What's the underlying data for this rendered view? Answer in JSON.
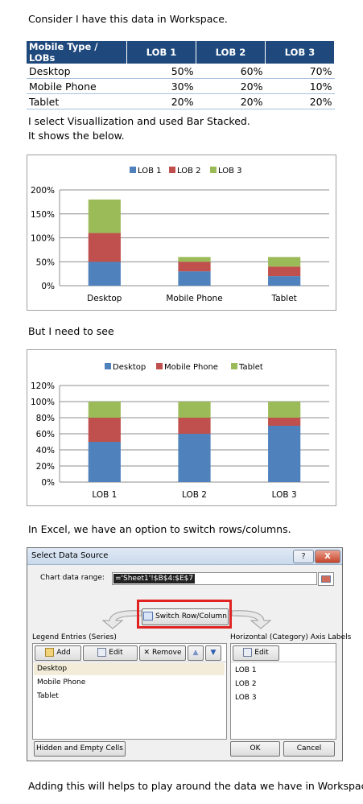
{
  "intro": "Consider I have this data in Workspace.",
  "table": {
    "headers": [
      "Mobile Type / LOBs",
      "LOB 1",
      "LOB 2",
      "LOB 3"
    ],
    "rows": [
      [
        "Desktop",
        "50%",
        "60%",
        "70%"
      ],
      [
        "Mobile Phone",
        "30%",
        "20%",
        "10%"
      ],
      [
        "Tablet",
        "20%",
        "20%",
        "20%"
      ]
    ]
  },
  "para2_line1": "I select Visuallization and used Bar Stacked.",
  "para2_line2": "It shows the below.",
  "para3": "But I need to see",
  "para4": "In Excel, we have an option to switch rows/columns.",
  "closing": "Adding this will helps to play around the data we have in Workspace.",
  "colors": {
    "blue": "#4f81bd",
    "red": "#c0504d",
    "green": "#9bbb59",
    "header": "#1f497d"
  },
  "chart_data": [
    {
      "type": "bar",
      "stacked": true,
      "categories": [
        "Desktop",
        "Mobile Phone",
        "Tablet"
      ],
      "series": [
        {
          "name": "LOB 1",
          "values": [
            50,
            30,
            20
          ]
        },
        {
          "name": "LOB 2",
          "values": [
            60,
            20,
            20
          ]
        },
        {
          "name": "LOB 3",
          "values": [
            70,
            10,
            20
          ]
        }
      ],
      "yticks": [
        "0%",
        "50%",
        "100%",
        "150%",
        "200%"
      ],
      "ylim": [
        0,
        200
      ],
      "legend": "top",
      "grid": true
    },
    {
      "type": "bar",
      "stacked": true,
      "categories": [
        "LOB 1",
        "LOB 2",
        "LOB 3"
      ],
      "series": [
        {
          "name": "Desktop",
          "values": [
            50,
            60,
            70
          ]
        },
        {
          "name": "Mobile Phone",
          "values": [
            30,
            20,
            10
          ]
        },
        {
          "name": "Tablet",
          "values": [
            20,
            20,
            20
          ]
        }
      ],
      "yticks": [
        "0%",
        "20%",
        "40%",
        "60%",
        "80%",
        "100%",
        "120%"
      ],
      "ylim": [
        0,
        120
      ],
      "legend": "top",
      "grid": true
    }
  ],
  "dialog": {
    "title": "Select Data Source",
    "help": "?",
    "close": "X",
    "range_label": "Chart data range:",
    "range_value": "='Sheet1'!$B$4:$E$7",
    "switch_label": "Switch Row/Column",
    "legend_label": "Legend Entries (Series)",
    "axis_label": "Horizontal (Category) Axis Labels",
    "add": "Add",
    "edit": "Edit",
    "remove": "Remove",
    "edit2": "Edit",
    "series": [
      "Desktop",
      "Mobile Phone",
      "Tablet"
    ],
    "axis_items": [
      "LOB 1",
      "LOB 2",
      "LOB 3"
    ],
    "hidden_btn": "Hidden and Empty Cells",
    "ok": "OK",
    "cancel": "Cancel"
  }
}
